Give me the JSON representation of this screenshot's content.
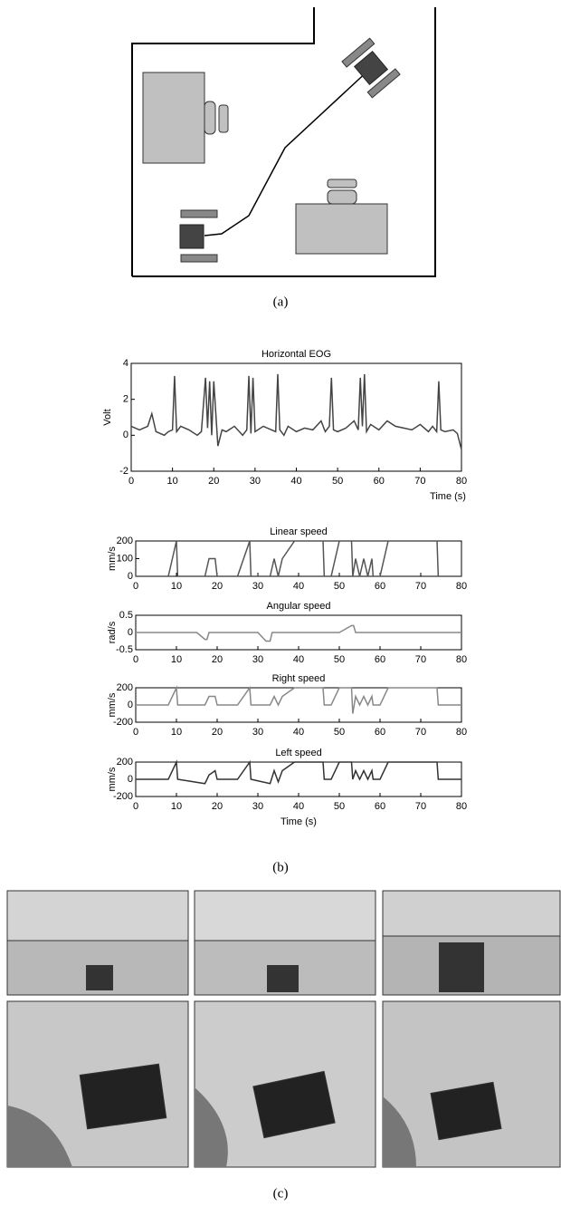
{
  "captions": [
    "(a)",
    "(b)",
    "(c)"
  ],
  "chart_data": [
    {
      "type": "line",
      "title": "Horizontal EOG",
      "y_label": "Volt",
      "x_label": "Time (s)",
      "xlim": [
        0,
        80
      ],
      "xticks": [
        0,
        10,
        20,
        30,
        40,
        50,
        60,
        70,
        80
      ],
      "ylim": [
        -2,
        4
      ],
      "yticks": [
        -2,
        0,
        2,
        4
      ],
      "series": [
        {
          "color": "#444444",
          "x": [
            0,
            2,
            4,
            5,
            6,
            8,
            9,
            10,
            10.5,
            11,
            12,
            14,
            16,
            17,
            18,
            18.5,
            19,
            19.5,
            20,
            21,
            22,
            23,
            25,
            27,
            28,
            28.5,
            29,
            29.5,
            30,
            32,
            34,
            35,
            35.5,
            36,
            37,
            38,
            40,
            42,
            44,
            46,
            47,
            48,
            48.5,
            49,
            50,
            52,
            54,
            55,
            55.5,
            56,
            56.5,
            57,
            58,
            60,
            62,
            64,
            66,
            68,
            70,
            72,
            73,
            74,
            74.5,
            75,
            76,
            78,
            79,
            80
          ],
          "values": [
            0.5,
            0.3,
            0.5,
            1.2,
            0.2,
            0,
            0.2,
            0.3,
            3.3,
            0.2,
            0.5,
            0.3,
            0,
            0.2,
            3.2,
            0.4,
            3.0,
            0,
            3.0,
            -0.6,
            0.3,
            0.2,
            0.5,
            0,
            0.3,
            3.3,
            0.1,
            3.2,
            0.2,
            0.5,
            0.3,
            0.2,
            3.4,
            0.3,
            0,
            0.5,
            0.2,
            0.4,
            0.3,
            0.8,
            0.2,
            0.5,
            3.2,
            0.3,
            0.2,
            0.4,
            0.8,
            0.3,
            3.2,
            0.5,
            3.4,
            0.2,
            0.6,
            0.3,
            0.8,
            0.5,
            0.4,
            0.3,
            0.6,
            0.2,
            0.5,
            0.2,
            3.0,
            0.3,
            0.2,
            0.3,
            0.1,
            -0.8
          ]
        }
      ]
    },
    {
      "type": "line",
      "title": "Linear speed",
      "y_label": "mm/s",
      "xlim": [
        0,
        80
      ],
      "xticks": [
        0,
        10,
        20,
        30,
        40,
        50,
        60,
        70,
        80
      ],
      "ylim": [
        0,
        200
      ],
      "yticks": [
        0,
        100,
        200
      ],
      "series": [
        {
          "color": "#555555",
          "x": [
            0,
            8,
            10,
            10.3,
            17,
            18,
            19.5,
            20,
            25,
            28,
            28.3,
            33,
            34,
            35,
            36,
            39,
            46,
            46.3,
            48,
            50,
            53,
            53.3,
            54,
            55,
            56,
            57,
            58,
            58.3,
            60,
            62,
            74,
            74.3,
            80
          ],
          "values": [
            0,
            0,
            200,
            0,
            0,
            100,
            100,
            0,
            0,
            200,
            0,
            0,
            100,
            0,
            100,
            200,
            200,
            0,
            0,
            200,
            200,
            0,
            100,
            0,
            100,
            0,
            100,
            0,
            0,
            200,
            200,
            0,
            0
          ]
        }
      ]
    },
    {
      "type": "line",
      "title": "Angular speed",
      "y_label": "rad/s",
      "xlim": [
        0,
        80
      ],
      "xticks": [
        0,
        10,
        20,
        30,
        40,
        50,
        60,
        70,
        80
      ],
      "ylim": [
        -0.5,
        0.5
      ],
      "yticks": [
        -0.5,
        0,
        0.5
      ],
      "series": [
        {
          "color": "#888888",
          "x": [
            0,
            15,
            17,
            17.5,
            18,
            30,
            32,
            33,
            33.5,
            34,
            50,
            53,
            53.5,
            54,
            80
          ],
          "values": [
            0,
            0,
            -0.2,
            -0.2,
            0,
            0,
            -0.25,
            -0.25,
            0,
            0,
            0,
            0.2,
            0.2,
            0,
            0
          ]
        }
      ]
    },
    {
      "type": "line",
      "title": "Right speed",
      "y_label": "mm/s",
      "xlim": [
        0,
        80
      ],
      "xticks": [
        0,
        10,
        20,
        30,
        40,
        50,
        60,
        70,
        80
      ],
      "ylim": [
        -200,
        200
      ],
      "yticks": [
        -200,
        0,
        200
      ],
      "series": [
        {
          "color": "#888888",
          "x": [
            0,
            8,
            10,
            10.3,
            17,
            18,
            19.5,
            20,
            25,
            28,
            28.3,
            33,
            34,
            35,
            36,
            39,
            46,
            46.3,
            48,
            50,
            53,
            53.3,
            54,
            55,
            56,
            57,
            58,
            58.3,
            60,
            62,
            74,
            74.3,
            80
          ],
          "values": [
            0,
            0,
            200,
            0,
            0,
            100,
            100,
            0,
            0,
            200,
            0,
            0,
            100,
            0,
            100,
            200,
            200,
            0,
            0,
            200,
            200,
            -100,
            100,
            0,
            100,
            0,
            100,
            0,
            0,
            200,
            200,
            0,
            0
          ]
        }
      ]
    },
    {
      "type": "line",
      "title": "Left speed",
      "y_label": "mm/s",
      "x_label": "Time (s)",
      "xlim": [
        0,
        80
      ],
      "xticks": [
        0,
        10,
        20,
        30,
        40,
        50,
        60,
        70,
        80
      ],
      "ylim": [
        -200,
        200
      ],
      "yticks": [
        -200,
        0,
        200
      ],
      "series": [
        {
          "color": "#333333",
          "x": [
            0,
            8,
            10,
            10.3,
            17,
            18,
            19.5,
            20,
            25,
            28,
            28.3,
            33,
            34,
            35,
            36,
            39,
            46,
            46.3,
            48,
            50,
            53,
            53.3,
            54,
            55,
            56,
            57,
            58,
            58.3,
            60,
            62,
            74,
            74.3,
            80
          ],
          "values": [
            0,
            0,
            200,
            0,
            -50,
            50,
            100,
            0,
            0,
            200,
            0,
            -50,
            100,
            -30,
            100,
            200,
            200,
            0,
            0,
            200,
            200,
            0,
            100,
            0,
            100,
            0,
            100,
            0,
            0,
            200,
            200,
            0,
            0
          ]
        }
      ]
    }
  ]
}
